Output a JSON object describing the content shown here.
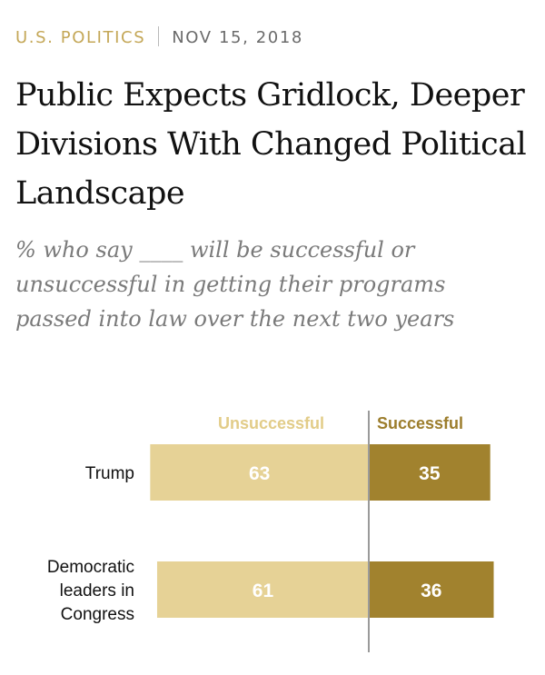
{
  "header": {
    "section": "U.S. POLITICS",
    "date": "NOV 15, 2018"
  },
  "title": "Public Expects Gridlock, Deeper Divisions With Changed Political Landscape",
  "subtitle": "% who say ____ will be successful or unsuccessful in getting their programs passed into law over the next two years",
  "colors": {
    "unsuccessful": "#e6d296",
    "successful": "#a1822e",
    "unsuccessful_header": "#e2cc88",
    "successful_header": "#9c7d2c",
    "divider": "#9a9a9a"
  },
  "chart_data": {
    "type": "bar",
    "orientation": "horizontal-diverging",
    "categories": [
      [
        "Trump"
      ],
      [
        "Democratic",
        "leaders in",
        "Congress"
      ]
    ],
    "series": [
      {
        "name": "Unsuccessful",
        "values": [
          63,
          61
        ],
        "direction": "left"
      },
      {
        "name": "Successful",
        "values": [
          35,
          36
        ],
        "direction": "right"
      }
    ],
    "unit": "%"
  }
}
